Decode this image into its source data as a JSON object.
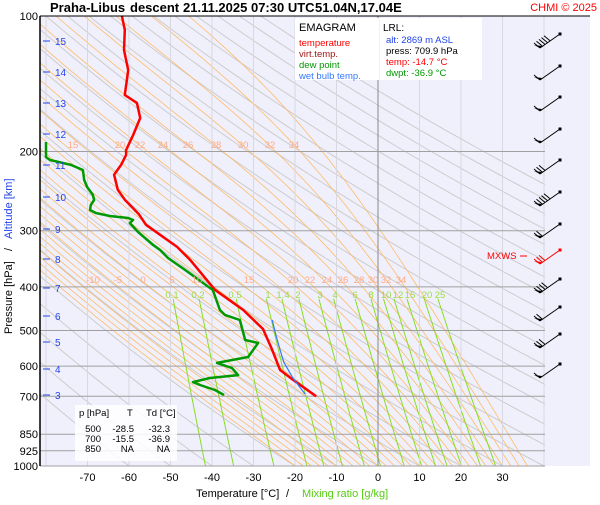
{
  "header": {
    "station": "Praha-Libus",
    "mode": "descent",
    "datetime": "21.11.2025 07:30 UTC",
    "coords": "51.04N,17.04E",
    "copyright": "CHMI © 2025"
  },
  "legend": {
    "title": "EMAGRAM",
    "items": [
      {
        "label": "temperature",
        "color": "#ff0000"
      },
      {
        "label": "virt.temp.",
        "color": "#a01818"
      },
      {
        "label": "dew point",
        "color": "#009900"
      },
      {
        "label": "wet bulb temp.",
        "color": "#3377ff"
      }
    ]
  },
  "lrl": {
    "title": "LRL:",
    "alt": "alt: 2869 m ASL",
    "press": "press: 709.9 hPa",
    "temp": "temp: -14.7 °C",
    "dwpt": "dwpt: -36.9 °C"
  },
  "table": {
    "headers": [
      "p [hPa]",
      "T",
      "Td [°C]"
    ],
    "rows": [
      [
        "500",
        "-28.5",
        "-32.3"
      ],
      [
        "700",
        "-15.5",
        "-36.9"
      ],
      [
        "850",
        "NA",
        "NA"
      ]
    ]
  },
  "mxws_label": "MXWS",
  "chart_data": {
    "type": "line",
    "title": "Praha-Libus descent 21.11.2025 07:30 UTC 51.04N,17.04E",
    "xlabel": "Temperature [°C]",
    "xlabel2": "Mixing ratio [g/kg]",
    "ylabel": "Pressure [hPa]",
    "ylabel2": "Altitude [km]",
    "xlim": [
      -82,
      40
    ],
    "ylim": [
      1000,
      100
    ],
    "y_scale": "log",
    "x_ticks": [
      -70,
      -60,
      -50,
      -40,
      -30,
      -20,
      -10,
      0,
      10,
      20,
      30
    ],
    "y_ticks": [
      100,
      200,
      300,
      400,
      500,
      600,
      700,
      850,
      925,
      1000
    ],
    "altitude_ticks_km": [
      15,
      14,
      13,
      12,
      11,
      10,
      9,
      8,
      7,
      6,
      5,
      4,
      3
    ],
    "mixing_ratio_labels": [
      "0.1",
      "0.2",
      "0.5",
      "1",
      "1.4",
      "2",
      "3",
      "4",
      "6",
      "8",
      "10",
      "12",
      "15",
      "20",
      "25"
    ],
    "moist_adiabat_labels_upper": [
      "15",
      "20",
      "22",
      "24",
      "26",
      "28",
      "30",
      "32",
      "34"
    ],
    "moist_adiabat_labels_lower": [
      "-10",
      "-5",
      "0",
      "5",
      "10",
      "15",
      "20",
      "22",
      "24",
      "26",
      "28",
      "30",
      "32",
      "34"
    ],
    "grid": true,
    "series": [
      {
        "name": "temperature",
        "color": "#ff0000",
        "points": [
          [
            100,
            -61.7
          ],
          [
            107.4,
            -61.0
          ],
          [
            119,
            -61.2
          ],
          [
            131.8,
            -60.2
          ],
          [
            149.8,
            -61.0
          ],
          [
            156,
            -58.1
          ],
          [
            168.5,
            -57.3
          ],
          [
            183.9,
            -59.0
          ],
          [
            198.5,
            -60.7
          ],
          [
            203.6,
            -60.7
          ],
          [
            214.2,
            -61.9
          ],
          [
            225.3,
            -63.6
          ],
          [
            243.3,
            -62.7
          ],
          [
            256,
            -61.0
          ],
          [
            276,
            -57.6
          ],
          [
            291,
            -55.9
          ],
          [
            326,
            -48.4
          ],
          [
            348,
            -45.3
          ],
          [
            406,
            -39.3
          ],
          [
            450,
            -32.5
          ],
          [
            496,
            -27.7
          ],
          [
            552,
            -25.5
          ],
          [
            612,
            -23.6
          ],
          [
            643,
            -20.5
          ],
          [
            700,
            -14.9
          ]
        ]
      },
      {
        "name": "dew point",
        "color": "#009900",
        "points": [
          [
            190.5,
            -80.0
          ],
          [
            205.8,
            -80.0
          ],
          [
            208.9,
            -79.0
          ],
          [
            214.2,
            -74.0
          ],
          [
            219.9,
            -71.1
          ],
          [
            231.4,
            -70.8
          ],
          [
            239.9,
            -70.1
          ],
          [
            249.9,
            -68.7
          ],
          [
            256.4,
            -68.4
          ],
          [
            263,
            -69.2
          ],
          [
            269.8,
            -69.4
          ],
          [
            274,
            -68.0
          ],
          [
            278.3,
            -64.6
          ],
          [
            281.1,
            -60.2
          ],
          [
            284,
            -59.0
          ],
          [
            288.4,
            -59.8
          ],
          [
            302,
            -57.8
          ],
          [
            322.8,
            -54.2
          ],
          [
            331.1,
            -52.5
          ],
          [
            345,
            -50.6
          ],
          [
            366.7,
            -46.5
          ],
          [
            406.3,
            -39.8
          ],
          [
            450.1,
            -38.1
          ],
          [
            461.6,
            -36.9
          ],
          [
            473.8,
            -33.3
          ],
          [
            524.8,
            -32.0
          ],
          [
            533,
            -28.9
          ],
          [
            572.5,
            -31.3
          ],
          [
            590.2,
            -38.8
          ],
          [
            605.8,
            -35.2
          ],
          [
            627.9,
            -33.7
          ],
          [
            637.6,
            -40.5
          ],
          [
            650.8,
            -44.6
          ],
          [
            660.7,
            -42.9
          ],
          [
            677.8,
            -39.3
          ],
          [
            695.3,
            -37.1
          ]
        ]
      },
      {
        "name": "wet bulb temp.",
        "color": "#3377ff",
        "points": [
          [
            473.8,
            -25.5
          ],
          [
            511.6,
            -24.6
          ],
          [
            552.4,
            -23.6
          ],
          [
            588,
            -22.7
          ],
          [
            637.6,
            -20.5
          ],
          [
            691.7,
            -17.6
          ]
        ]
      }
    ]
  }
}
